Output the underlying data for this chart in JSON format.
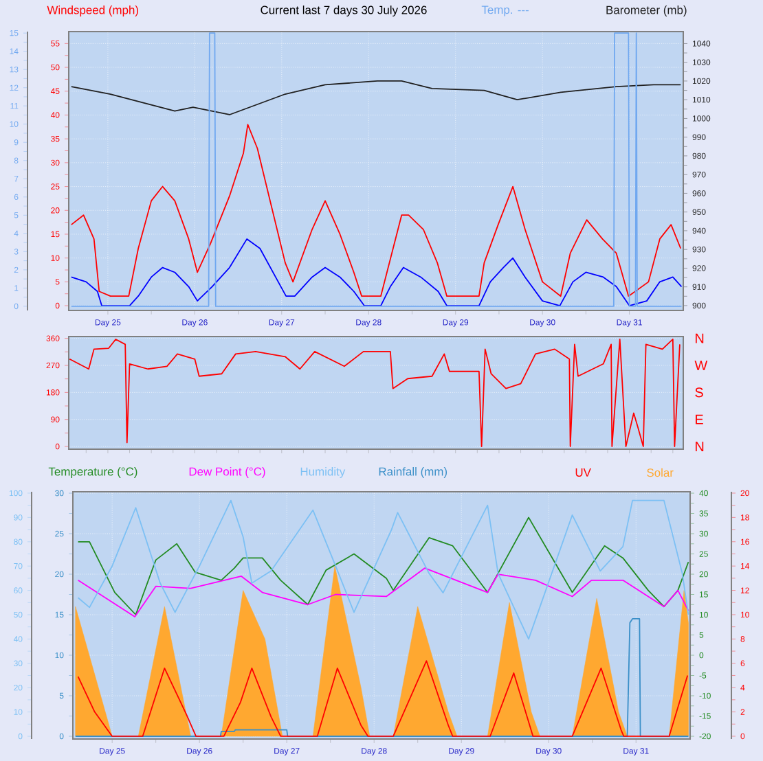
{
  "chart_data": [
    {
      "type": "line",
      "title": "Current last 7 days 30 July 2026",
      "ylabel": "Windspeed (mph)",
      "y2label": "Barometer (mb)",
      "y3label": "Temp. ---",
      "xlim": [
        "2026-07-24T13:12",
        "2026-07-31T14:53"
      ],
      "xticks": [
        {
          "value": "2026-07-25",
          "label": "Day 25"
        },
        {
          "value": "2026-07-26",
          "label": "Day 26"
        },
        {
          "value": "2026-07-27",
          "label": "Day 27"
        },
        {
          "value": "2026-07-28",
          "label": "Day 28"
        },
        {
          "value": "2026-07-29",
          "label": "Day 29"
        },
        {
          "value": "2026-07-30",
          "label": "Day 30"
        },
        {
          "value": "2026-07-31",
          "label": "Day 31"
        }
      ],
      "ylim": [
        -1,
        57.5
      ],
      "yticks": [
        0,
        5,
        10,
        15,
        20,
        25,
        30,
        35,
        40,
        45,
        50,
        55
      ],
      "y2lim": [
        897.4,
        1046.4
      ],
      "y2ticks": [
        900,
        910,
        920,
        930,
        940,
        950,
        960,
        970,
        980,
        990,
        1000,
        1010,
        1020,
        1030,
        1040
      ],
      "y3lim": [
        -0.23,
        15.08
      ],
      "y3ticks": [
        0,
        1,
        2,
        3,
        4,
        5,
        6,
        7,
        8,
        9,
        10,
        11,
        12,
        13,
        14,
        15
      ],
      "grid": true,
      "series": [
        {
          "color": "#ff0000",
          "x": [
            "2026-07-24T13:55",
            "2026-07-24T17:17",
            "2026-07-24T20:10",
            "2026-07-24T21:36",
            "2026-07-25T00:43",
            "2026-07-25T05:46",
            "2026-07-25T08:24",
            "2026-07-25T12:00",
            "2026-07-25T15:07",
            "2026-07-25T18:29",
            "2026-07-25T22:19",
            "2026-07-26T00:43",
            "2026-07-26T04:19",
            "2026-07-26T09:36",
            "2026-07-26T13:26",
            "2026-07-26T14:38",
            "2026-07-26T17:17",
            "2026-07-26T21:07",
            "2026-07-27T00:58",
            "2026-07-27T03:07",
            "2026-07-27T08:24",
            "2026-07-27T12:00",
            "2026-07-27T16:05",
            "2026-07-27T19:55",
            "2026-07-27T22:05",
            "2026-07-28T03:22",
            "2026-07-28T09:07",
            "2026-07-28T11:02",
            "2026-07-28T15:07",
            "2026-07-28T18:58",
            "2026-07-28T21:36",
            "2026-07-29T06:29",
            "2026-07-29T07:55",
            "2026-07-29T11:46",
            "2026-07-29T15:50",
            "2026-07-29T19:12",
            "2026-07-30T00:00",
            "2026-07-30T05:02",
            "2026-07-30T07:41",
            "2026-07-30T12:14",
            "2026-07-30T16:34",
            "2026-07-30T20:24",
            "2026-07-30T23:46",
            "2026-07-31T05:17",
            "2026-07-31T08:24",
            "2026-07-31T11:31",
            "2026-07-31T14:10"
          ],
          "values": [
            17,
            19,
            14,
            3,
            2,
            2,
            12,
            22,
            25,
            22,
            14,
            7,
            13,
            23,
            32,
            38,
            33,
            21,
            9,
            5,
            16,
            22,
            15,
            7,
            2,
            2,
            19,
            19,
            16,
            9,
            2,
            2,
            9,
            17,
            25,
            16,
            5,
            2,
            11,
            18,
            14,
            11,
            2,
            5,
            14,
            17,
            12
          ]
        },
        {
          "color": "#0000ff",
          "x": [
            "2026-07-24T13:55",
            "2026-07-24T18:00",
            "2026-07-24T21:07",
            "2026-07-24T22:19",
            "2026-07-25T06:00",
            "2026-07-25T08:24",
            "2026-07-25T12:00",
            "2026-07-25T15:07",
            "2026-07-25T18:29",
            "2026-07-25T22:19",
            "2026-07-26T00:43",
            "2026-07-26T04:48",
            "2026-07-26T09:36",
            "2026-07-26T14:24",
            "2026-07-26T18:00",
            "2026-07-26T21:36",
            "2026-07-27T01:12",
            "2026-07-27T03:36",
            "2026-07-27T08:24",
            "2026-07-27T12:00",
            "2026-07-27T16:05",
            "2026-07-27T19:55",
            "2026-07-27T22:48",
            "2026-07-28T03:22",
            "2026-07-28T06:00",
            "2026-07-28T09:36",
            "2026-07-28T14:24",
            "2026-07-28T19:12",
            "2026-07-28T21:36",
            "2026-07-29T06:29",
            "2026-07-29T09:36",
            "2026-07-29T13:12",
            "2026-07-29T15:50",
            "2026-07-29T19:12",
            "2026-07-30T00:00",
            "2026-07-30T04:48",
            "2026-07-30T08:24",
            "2026-07-30T12:00",
            "2026-07-30T16:48",
            "2026-07-30T20:24",
            "2026-07-31T00:00",
            "2026-07-31T04:48",
            "2026-07-31T08:24",
            "2026-07-31T12:00",
            "2026-07-31T14:24"
          ],
          "values": [
            6,
            5,
            3,
            0,
            0,
            2,
            6,
            8,
            7,
            4,
            1,
            4,
            8,
            14,
            12,
            7,
            2,
            2,
            6,
            8,
            6,
            3,
            0,
            0,
            4,
            8,
            6,
            3,
            0,
            0,
            5,
            8,
            10,
            6,
            1,
            0,
            5,
            7,
            6,
            4,
            0,
            1,
            5,
            6,
            4
          ]
        },
        {
          "color": "#202020",
          "axis": "y2",
          "x": [
            "2026-07-24T13:55",
            "2026-07-25T00:43",
            "2026-07-25T18:29",
            "2026-07-25T23:31",
            "2026-07-26T09:36",
            "2026-07-27T00:58",
            "2026-07-27T12:00",
            "2026-07-28T02:24",
            "2026-07-28T09:07",
            "2026-07-28T17:31",
            "2026-07-29T07:55",
            "2026-07-29T17:02",
            "2026-07-30T05:02",
            "2026-07-30T20:24",
            "2026-07-31T06:43",
            "2026-07-31T14:10"
          ],
          "values": [
            1017,
            1013,
            1004,
            1006,
            1002,
            1013,
            1018,
            1020,
            1020,
            1016,
            1015,
            1010,
            1014,
            1017,
            1018,
            1018
          ]
        },
        {
          "color": "#70a8f0",
          "axis": "y3",
          "x": [
            "2026-07-24T13:55",
            "2026-07-26T03:50",
            "2026-07-26T04:05",
            "2026-07-26T05:31",
            "2026-07-26T05:46",
            "2026-07-30T19:41",
            "2026-07-30T19:55",
            "2026-07-30T23:46",
            "2026-07-31T00:00",
            "2026-07-31T01:41",
            "2026-07-31T01:55",
            "2026-07-31T02:10",
            "2026-07-31T14:24"
          ],
          "values": [
            0,
            0,
            15,
            15,
            0,
            0,
            15,
            15,
            0,
            0,
            15,
            0,
            0
          ]
        }
      ]
    },
    {
      "type": "line",
      "xlim": [
        "2026-07-24T13:12",
        "2026-07-31T14:53"
      ],
      "tick_labels": "y",
      "ylim": [
        -9,
        366
      ],
      "yticks": [
        0,
        90,
        180,
        270,
        360
      ],
      "annotations": [
        "N",
        "W",
        "S",
        "E",
        "N"
      ],
      "grid": "y",
      "series": [
        {
          "color": "#ff0000",
          "x": [
            "2026-07-24T13:26",
            "2026-07-24T18:43",
            "2026-07-24T20:10",
            "2026-07-25T00:14",
            "2026-07-25T02:10",
            "2026-07-25T04:48",
            "2026-07-25T05:17",
            "2026-07-25T06:00",
            "2026-07-25T11:02",
            "2026-07-25T16:19",
            "2026-07-25T19:12",
            "2026-07-26T00:00",
            "2026-07-26T01:12",
            "2026-07-26T07:26",
            "2026-07-26T11:17",
            "2026-07-26T16:48",
            "2026-07-27T00:58",
            "2026-07-27T05:02",
            "2026-07-27T09:07",
            "2026-07-27T17:17",
            "2026-07-27T22:34",
            "2026-07-28T06:00",
            "2026-07-28T06:43",
            "2026-07-28T10:48",
            "2026-07-28T17:31",
            "2026-07-28T20:53",
            "2026-07-28T22:19",
            "2026-07-29T06:29",
            "2026-07-29T07:12",
            "2026-07-29T08:10",
            "2026-07-29T09:50",
            "2026-07-29T13:55",
            "2026-07-29T18:00",
            "2026-07-29T22:05",
            "2026-07-30T03:22",
            "2026-07-30T07:26",
            "2026-07-30T07:41",
            "2026-07-30T08:53",
            "2026-07-30T09:50",
            "2026-07-30T16:48",
            "2026-07-30T18:58",
            "2026-07-30T19:12",
            "2026-07-30T21:22",
            "2026-07-30T23:02",
            "2026-07-31T01:12",
            "2026-07-31T02:24",
            "2026-07-31T03:50",
            "2026-07-31T04:34",
            "2026-07-31T09:07",
            "2026-07-31T12:00",
            "2026-07-31T12:29",
            "2026-07-31T13:55"
          ],
          "values": [
            291,
            258,
            324,
            327,
            357,
            340,
            13,
            275,
            258,
            267,
            308,
            291,
            234,
            242,
            308,
            316,
            299,
            258,
            316,
            267,
            316,
            316,
            193,
            226,
            234,
            308,
            250,
            250,
            0,
            324,
            242,
            193,
            209,
            308,
            324,
            291,
            0,
            340,
            234,
            275,
            340,
            0,
            357,
            0,
            111,
            62,
            0,
            340,
            324,
            357,
            0,
            340
          ]
        }
      ]
    },
    {
      "type": "line",
      "xlim": [
        "2026-07-24T13:12",
        "2026-07-31T14:53"
      ],
      "xticks": [
        {
          "value": "2026-07-25",
          "label": "Day 25"
        },
        {
          "value": "2026-07-26",
          "label": "Day 26"
        },
        {
          "value": "2026-07-27",
          "label": "Day 27"
        },
        {
          "value": "2026-07-28",
          "label": "Day 28"
        },
        {
          "value": "2026-07-29",
          "label": "Day 29"
        },
        {
          "value": "2026-07-30",
          "label": "Day 30"
        },
        {
          "value": "2026-07-31",
          "label": "Day 31"
        }
      ],
      "ylim": [
        -0.34,
        30.17
      ],
      "yticks": [
        0,
        5,
        10,
        15,
        20,
        25,
        30
      ],
      "y2lim": [
        -20.68,
        40.34
      ],
      "y2ticks": [
        -20,
        -15,
        -10,
        -5,
        0,
        5,
        10,
        15,
        20,
        25,
        30,
        35,
        40
      ],
      "y3lim": [
        -0.23,
        20.11
      ],
      "y3ticks": [
        0,
        2,
        4,
        6,
        8,
        10,
        12,
        14,
        16,
        18,
        20
      ],
      "grid": true,
      "legend": "top",
      "series": [
        {
          "name": "Temperature (°C)",
          "color": "#228b22",
          "axis": "y2",
          "x": [
            "2026-07-24T14:38",
            "2026-07-24T17:46",
            "2026-07-25T00:43",
            "2026-07-25T06:29",
            "2026-07-25T12:00",
            "2026-07-25T17:46",
            "2026-07-25T22:48",
            "2026-07-26T06:00",
            "2026-07-26T09:36",
            "2026-07-26T12:00",
            "2026-07-26T17:17",
            "2026-07-26T22:19",
            "2026-07-27T05:46",
            "2026-07-27T10:48",
            "2026-07-27T18:29",
            "2026-07-28T03:22",
            "2026-07-28T05:17",
            "2026-07-28T15:07",
            "2026-07-28T21:36",
            "2026-07-29T07:12",
            "2026-07-29T18:29",
            "2026-07-30T06:29",
            "2026-07-30T15:22",
            "2026-07-30T20:24",
            "2026-07-31T03:22",
            "2026-07-31T07:41",
            "2026-07-31T11:31",
            "2026-07-31T14:24"
          ],
          "values": [
            28,
            28,
            15.5,
            10,
            23.5,
            27.5,
            20.5,
            18.5,
            21.5,
            24,
            24,
            18.5,
            12.5,
            21,
            25,
            19,
            16,
            29,
            27,
            15.5,
            34,
            15.5,
            27,
            24,
            16,
            12,
            16,
            23
          ]
        },
        {
          "name": "Dew Point (°C)",
          "color": "#ff00ff",
          "axis": "y2",
          "x": [
            "2026-07-24T14:38",
            "2026-07-25T06:14",
            "2026-07-25T12:00",
            "2026-07-25T21:36",
            "2026-07-26T11:31",
            "2026-07-26T17:17",
            "2026-07-27T05:46",
            "2026-07-27T13:26",
            "2026-07-28T03:22",
            "2026-07-28T13:55",
            "2026-07-29T07:12",
            "2026-07-29T10:05",
            "2026-07-29T20:24",
            "2026-07-30T06:29",
            "2026-07-30T11:46",
            "2026-07-30T20:24",
            "2026-07-31T07:41",
            "2026-07-31T11:31",
            "2026-07-31T14:24"
          ],
          "values": [
            18.5,
            9.5,
            17,
            16.5,
            19.5,
            15.5,
            12.5,
            15,
            14.5,
            21.5,
            15.5,
            20,
            18.5,
            14.5,
            18.5,
            18.5,
            12,
            16,
            11
          ]
        },
        {
          "name": "Rainfall (mm)",
          "color": "#3a8fc8",
          "x": [
            "2026-07-24T13:55",
            "2026-07-26T05:46",
            "2026-07-26T06:00",
            "2026-07-26T09:36",
            "2026-07-26T09:50",
            "2026-07-27T00:00",
            "2026-07-27T00:14",
            "2026-07-30T21:36",
            "2026-07-30T22:19",
            "2026-07-30T23:02",
            "2026-07-31T00:58",
            "2026-07-31T01:12",
            "2026-07-31T14:24"
          ],
          "values": [
            0,
            0,
            0.6,
            0.6,
            0.8,
            0.8,
            0,
            0,
            14,
            14.5,
            14.5,
            0,
            0
          ]
        },
        {
          "name": "UV",
          "color": "#ff0000",
          "axis": "y3",
          "x": [
            "2026-07-24T14:38",
            "2026-07-24T19:12",
            "2026-07-25T00:00",
            "2026-07-25T08:24",
            "2026-07-25T14:24",
            "2026-07-25T20:24",
            "2026-07-25T23:02",
            "2026-07-26T06:43",
            "2026-07-26T11:17",
            "2026-07-26T14:24",
            "2026-07-26T19:41",
            "2026-07-26T22:19",
            "2026-07-27T08:24",
            "2026-07-27T13:55",
            "2026-07-27T20:24",
            "2026-07-27T22:19",
            "2026-07-28T05:17",
            "2026-07-28T14:24",
            "2026-07-28T20:24",
            "2026-07-28T21:36",
            "2026-07-29T07:55",
            "2026-07-29T14:24",
            "2026-07-29T19:41",
            "2026-07-30T06:29",
            "2026-07-30T14:24",
            "2026-07-30T19:55",
            "2026-07-30T20:38",
            "2026-07-31T09:07",
            "2026-07-31T14:10"
          ],
          "values": [
            4.9,
            2,
            0,
            0,
            5.6,
            1.8,
            0,
            0,
            2.8,
            5.6,
            1.6,
            0,
            0,
            5.6,
            0.9,
            0,
            0,
            6.2,
            0.9,
            0,
            0,
            5.2,
            0,
            0,
            5.6,
            0.5,
            0,
            0,
            5
          ]
        },
        {
          "name": "Solar",
          "type": "area",
          "color": "#ffa830",
          "x": [
            "2026-07-24T13:55",
            "2026-07-25T00:00",
            "2026-07-25T07:12",
            "2026-07-25T14:24",
            "2026-07-25T21:36",
            "2026-07-26T06:00",
            "2026-07-26T12:00",
            "2026-07-26T18:00",
            "2026-07-26T22:48",
            "2026-07-27T07:12",
            "2026-07-27T13:12",
            "2026-07-27T20:24",
            "2026-07-27T22:48",
            "2026-07-28T05:17",
            "2026-07-28T12:00",
            "2026-07-28T20:24",
            "2026-07-28T22:48",
            "2026-07-29T07:12",
            "2026-07-29T13:12",
            "2026-07-29T19:12",
            "2026-07-29T21:36",
            "2026-07-30T06:29",
            "2026-07-30T13:12",
            "2026-07-30T19:12",
            "2026-07-30T21:36",
            "2026-07-31T09:07",
            "2026-07-31T13:12",
            "2026-07-31T14:24"
          ],
          "values": [
            16,
            0,
            0,
            16,
            0,
            0,
            18,
            12,
            0,
            0,
            21,
            6,
            0,
            0,
            16,
            3,
            0,
            0,
            16.5,
            3,
            0,
            0,
            17,
            3,
            0,
            0,
            18,
            14
          ]
        }
      ]
    },
    {
      "type": "line",
      "xlim": [
        "2026-07-24T13:12",
        "2026-07-31T14:53"
      ],
      "ylim": [
        -1.13,
        100.56
      ],
      "yticks": [
        0,
        10,
        20,
        30,
        40,
        50,
        60,
        70,
        80,
        90,
        100
      ],
      "legend": "top",
      "series": [
        {
          "name": "Humidity",
          "color": "#7cc0f4",
          "x": [
            "2026-07-24T14:38",
            "2026-07-24T17:46",
            "2026-07-25T00:00",
            "2026-07-25T06:29",
            "2026-07-25T13:12",
            "2026-07-25T17:17",
            "2026-07-26T00:00",
            "2026-07-26T08:38",
            "2026-07-26T12:00",
            "2026-07-26T14:24",
            "2026-07-26T19:41",
            "2026-07-27T07:12",
            "2026-07-27T13:26",
            "2026-07-27T18:29",
            "2026-07-28T04:48",
            "2026-07-28T06:29",
            "2026-07-28T15:07",
            "2026-07-28T18:58",
            "2026-07-29T07:12",
            "2026-07-29T10:05",
            "2026-07-29T18:29",
            "2026-07-30T06:29",
            "2026-07-30T14:10",
            "2026-07-30T20:24",
            "2026-07-30T23:02",
            "2026-07-31T07:41",
            "2026-07-31T12:43",
            "2026-07-31T14:24"
          ],
          "values": [
            57,
            53,
            70,
            94,
            63,
            51,
            70,
            97,
            82,
            63,
            68,
            93,
            70,
            51,
            85,
            92,
            67,
            59,
            95,
            67,
            40,
            91,
            68,
            78,
            97,
            97,
            67,
            50
          ]
        }
      ]
    }
  ]
}
